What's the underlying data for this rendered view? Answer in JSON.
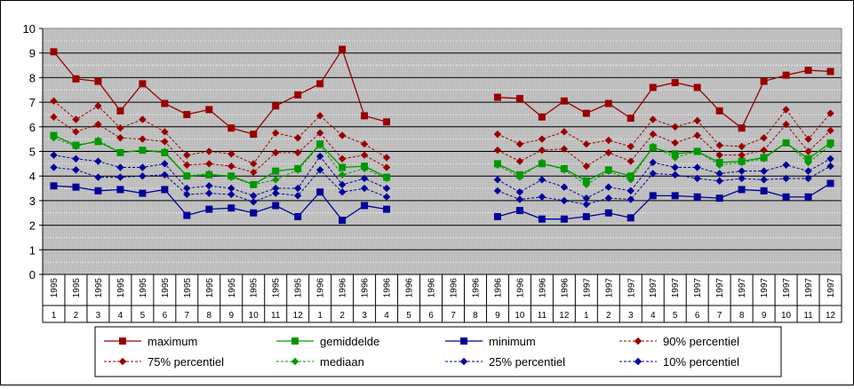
{
  "chart_data": {
    "type": "line",
    "title": "",
    "xlabel": "",
    "ylabel": "",
    "ylim": [
      0,
      10
    ],
    "yticks": [
      0,
      1,
      2,
      3,
      4,
      5,
      6,
      7,
      8,
      9,
      10
    ],
    "grid": true,
    "legend_position": "bottom",
    "x_years": [
      "1995",
      "1995",
      "1995",
      "1995",
      "1995",
      "1995",
      "1995",
      "1995",
      "1995",
      "1995",
      "1995",
      "1995",
      "1996",
      "1996",
      "1996",
      "1996",
      "1996",
      "1996",
      "1996",
      "1996",
      "1996",
      "1996",
      "1996",
      "1996",
      "1997",
      "1997",
      "1997",
      "1997",
      "1997",
      "1997",
      "1997",
      "1997",
      "1997",
      "1997",
      "1997",
      "1997"
    ],
    "x_months": [
      "1",
      "2",
      "3",
      "4",
      "5",
      "6",
      "7",
      "8",
      "9",
      "10",
      "11",
      "12",
      "1",
      "2",
      "3",
      "4",
      "5",
      "6",
      "7",
      "8",
      "9",
      "10",
      "11",
      "12",
      "1",
      "2",
      "3",
      "4",
      "5",
      "6",
      "7",
      "8",
      "9",
      "10",
      "11",
      "12"
    ],
    "series": [
      {
        "name": "maximum",
        "color": "#990000",
        "style": "solid",
        "marker": "square",
        "values": [
          9.05,
          7.95,
          7.85,
          6.65,
          7.75,
          6.95,
          6.5,
          6.7,
          5.95,
          5.7,
          6.85,
          7.3,
          7.75,
          9.15,
          6.45,
          6.2,
          null,
          null,
          null,
          null,
          7.2,
          7.15,
          6.4,
          7.05,
          6.55,
          6.95,
          6.35,
          7.6,
          7.8,
          7.6,
          6.65,
          5.95,
          7.85,
          8.1,
          8.3,
          8.25
        ]
      },
      {
        "name": "gemiddelde",
        "color": "#009900",
        "style": "solid",
        "marker": "square",
        "values": [
          5.65,
          5.25,
          5.4,
          4.95,
          5.05,
          4.95,
          4.0,
          4.05,
          4.0,
          3.65,
          4.2,
          4.3,
          5.3,
          4.35,
          4.4,
          3.95,
          null,
          null,
          null,
          null,
          4.5,
          4.05,
          4.5,
          4.3,
          3.8,
          4.25,
          4.0,
          5.15,
          4.9,
          5.0,
          4.55,
          4.6,
          4.75,
          5.35,
          4.7,
          5.35
        ]
      },
      {
        "name": "minimum",
        "color": "#000099",
        "style": "solid",
        "marker": "square",
        "values": [
          3.6,
          3.55,
          3.4,
          3.45,
          3.3,
          3.45,
          2.4,
          2.65,
          2.7,
          2.5,
          2.8,
          2.35,
          3.35,
          2.2,
          2.8,
          2.65,
          null,
          null,
          null,
          null,
          2.35,
          2.6,
          2.25,
          2.25,
          2.35,
          2.5,
          2.3,
          3.2,
          3.2,
          3.15,
          3.1,
          3.45,
          3.4,
          3.15,
          3.15,
          3.7
        ]
      },
      {
        "name": "90% percentiel",
        "color": "#990000",
        "style": "dashed",
        "marker": "diamond",
        "values": [
          7.05,
          6.3,
          6.85,
          5.95,
          6.3,
          5.8,
          4.85,
          5.0,
          4.9,
          4.5,
          5.75,
          5.55,
          6.45,
          5.65,
          5.3,
          4.75,
          null,
          null,
          null,
          null,
          5.7,
          5.3,
          5.5,
          5.8,
          5.3,
          5.45,
          5.2,
          6.3,
          6.0,
          6.25,
          5.25,
          5.2,
          5.55,
          6.7,
          5.5,
          6.55
        ]
      },
      {
        "name": "75% percentiel",
        "color": "#990000",
        "style": "dashed",
        "marker": "diamond",
        "values": [
          6.4,
          5.8,
          6.1,
          5.55,
          5.5,
          5.4,
          4.45,
          4.5,
          4.4,
          4.15,
          4.95,
          4.95,
          5.75,
          4.7,
          4.85,
          4.35,
          null,
          null,
          null,
          null,
          5.05,
          4.6,
          5.05,
          5.1,
          4.4,
          4.95,
          4.6,
          5.7,
          5.35,
          5.65,
          4.85,
          4.85,
          5.05,
          6.1,
          5.0,
          5.85
        ]
      },
      {
        "name": "mediaan",
        "color": "#009900",
        "style": "dashed",
        "marker": "diamond",
        "values": [
          5.55,
          5.2,
          5.45,
          4.95,
          5.05,
          5.0,
          4.0,
          4.1,
          3.95,
          3.65,
          3.85,
          4.25,
          5.25,
          4.05,
          4.3,
          3.9,
          null,
          null,
          null,
          null,
          4.45,
          3.95,
          4.55,
          4.25,
          3.65,
          4.2,
          3.85,
          5.2,
          4.75,
          5.0,
          4.45,
          4.55,
          4.7,
          5.35,
          4.55,
          5.25
        ]
      },
      {
        "name": "25% percentiel",
        "color": "#000099",
        "style": "dashed",
        "marker": "diamond",
        "values": [
          4.85,
          4.7,
          4.6,
          4.35,
          4.35,
          4.5,
          3.5,
          3.6,
          3.5,
          3.2,
          3.5,
          3.5,
          4.8,
          3.65,
          3.9,
          3.5,
          null,
          null,
          null,
          null,
          3.85,
          3.35,
          3.85,
          3.55,
          3.1,
          3.55,
          3.4,
          4.55,
          4.35,
          4.35,
          4.1,
          4.2,
          4.2,
          4.45,
          4.2,
          4.7
        ]
      },
      {
        "name": "10% percentiel",
        "color": "#000099",
        "style": "dashed",
        "marker": "diamond",
        "values": [
          4.35,
          4.25,
          3.95,
          3.95,
          4.0,
          4.05,
          3.25,
          3.3,
          3.25,
          2.95,
          3.3,
          3.2,
          4.25,
          3.35,
          3.5,
          3.15,
          null,
          null,
          null,
          null,
          3.4,
          3.05,
          3.15,
          3.0,
          2.85,
          3.1,
          3.05,
          4.1,
          4.05,
          3.9,
          3.8,
          3.9,
          3.85,
          3.9,
          3.9,
          4.4
        ]
      }
    ]
  }
}
